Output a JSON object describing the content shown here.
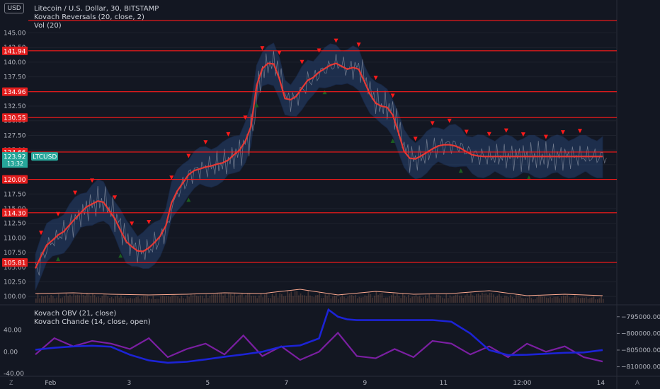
{
  "header": {
    "currency_badge": "USD",
    "title": "Litecoin / U.S. Dollar, 30, BITSTAMP",
    "indicators": [
      "Kovach Reversals (20, close, 2)",
      "Vol (20)"
    ]
  },
  "lower_pane": {
    "indicators": [
      "Kovach OBV (21, close)",
      "Kovach Chande (14, close, open)"
    ]
  },
  "footer": {
    "left_button": "Z",
    "right_button": "A"
  },
  "colors": {
    "background": "#131722",
    "level_line": "#ff1a1a",
    "ma_line": "#e53935",
    "band_fill": "#2a4a7f",
    "marker_down": "#ff1a1a",
    "marker_up": "#1b5e20",
    "volume": "#6d4c41",
    "vol_ma": "#ffab91",
    "obv": "#1c23d6",
    "chande": "#7b1fa2",
    "last_price_badge": "#26a69a"
  },
  "chart_data": [
    {
      "type": "line",
      "title": "Litecoin / U.S. Dollar, 30, BITSTAMP",
      "y_axis_side": "left",
      "ylim": [
        98.7,
        148.2
      ],
      "y_ticks": [
        100.0,
        102.5,
        105.0,
        107.5,
        110.0,
        112.5,
        115.0,
        117.5,
        120.0,
        122.5,
        125.0,
        127.5,
        130.0,
        132.5,
        135.0,
        137.5,
        140.0,
        142.5,
        145.0
      ],
      "y_tick_labels": [
        "100.00",
        "102.50",
        "105.00",
        "107.50",
        "110.00",
        "112.50",
        "115.00",
        "117.50",
        "120.00",
        "122.50",
        "125.00",
        "127.50",
        "130.00",
        "132.50",
        "135.00",
        "137.50",
        "140.00",
        "142.50",
        "145.00"
      ],
      "x_tick_labels": [
        "Feb",
        "3",
        "5",
        "7",
        "9",
        "11",
        "12:00",
        "14"
      ],
      "horizontal_levels": [
        147.1,
        141.94,
        134.96,
        130.55,
        124.66,
        120.0,
        114.3,
        105.81
      ],
      "level_labels": [
        "141.94",
        "134.96",
        "130.55",
        "124.66",
        "120.00",
        "114.30",
        "105.81"
      ],
      "last_price": {
        "symbol": "LTCUSD",
        "value": "123.92",
        "countdown": "13:32"
      },
      "series": [
        {
          "name": "Kovach Reversals (20, close, 2)",
          "x": [
            0,
            3,
            6,
            9,
            12,
            15,
            18,
            21,
            24,
            27,
            30,
            33,
            36,
            39,
            42,
            45,
            48,
            51,
            54,
            57,
            60,
            63,
            66,
            69,
            72,
            75,
            78,
            81,
            84,
            87,
            90,
            93,
            96,
            99,
            102,
            105,
            108,
            111,
            114,
            117,
            120,
            123,
            126,
            129,
            132,
            135,
            138,
            141,
            144,
            147,
            150,
            153,
            156,
            159,
            162,
            165,
            168,
            171,
            174,
            177,
            180,
            183,
            186,
            189,
            192,
            195,
            198,
            201,
            204,
            207,
            210,
            213,
            216,
            219,
            222,
            225,
            228,
            231,
            234,
            237,
            240,
            243,
            246,
            249,
            252,
            255,
            258,
            261,
            264,
            267,
            270,
            273,
            276,
            279,
            282,
            285,
            288,
            291,
            294,
            297,
            300
          ],
          "values": [
            104.8,
            106.9,
            108.8,
            109.6,
            110.5,
            111.1,
            112.2,
            113.3,
            114.3,
            115.3,
            115.8,
            116.3,
            116.1,
            114.7,
            113.3,
            111.3,
            109.4,
            108.5,
            107.8,
            107.7,
            108.3,
            109.2,
            110.3,
            112.1,
            116.0,
            118.0,
            119.4,
            120.8,
            121.5,
            121.8,
            122.1,
            122.3,
            122.6,
            122.8,
            123.3,
            124.2,
            125.0,
            126.5,
            129.0,
            136.0,
            138.9,
            139.8,
            139.7,
            137.2,
            133.8,
            133.6,
            134.2,
            135.6,
            136.9,
            137.4,
            138.3,
            138.9,
            139.5,
            139.8,
            139.3,
            138.8,
            139.1,
            138.8,
            136.7,
            134.5,
            133.0,
            132.5,
            132.3,
            131.0,
            128.0,
            124.8,
            123.6,
            123.5,
            124.0,
            124.6,
            125.2,
            125.7,
            125.9,
            125.9,
            125.7,
            125.3,
            124.7,
            124.2,
            124.0,
            123.9,
            123.9,
            123.9,
            123.9,
            123.9,
            123.9,
            123.9,
            123.9,
            123.9,
            123.9,
            123.9,
            123.9,
            123.9,
            123.9,
            123.9,
            123.9,
            123.9,
            123.9,
            123.9,
            123.9,
            123.9,
            123.9
          ]
        },
        {
          "name": "Vol (20)",
          "x": [
            0,
            20,
            40,
            60,
            80,
            100,
            120,
            140,
            160,
            180,
            200,
            220,
            240,
            260,
            280,
            300
          ],
          "values": [
            13,
            14,
            12,
            11,
            12,
            14,
            13,
            19,
            11,
            16,
            12,
            13,
            17,
            10,
            12,
            10
          ]
        }
      ],
      "reversal_markers_down_count": 30,
      "reversal_markers_up_count": 8
    },
    {
      "type": "line",
      "title": "Kovach OBV (21, close)",
      "y_axis_side": "left",
      "ylim": [
        -40.0,
        80.0
      ],
      "y_ticks": [
        -40.0,
        0.0,
        40.0
      ],
      "y_tick_labels": [
        "-40.00",
        "0.00",
        "40.00"
      ],
      "right_axis_ticks": [
        -795000.0,
        -800000.0,
        -805000.0,
        -810000.0
      ],
      "right_axis_labels": [
        "−795000.00",
        "−800000.00",
        "−805000.00",
        "−810000.00"
      ],
      "series": [
        {
          "name": "Kovach OBV (21, close)",
          "x": [
            0,
            10,
            20,
            30,
            40,
            50,
            60,
            70,
            80,
            90,
            100,
            110,
            120,
            130,
            140,
            150,
            155,
            160,
            165,
            170,
            180,
            190,
            200,
            210,
            220,
            230,
            240,
            250,
            260,
            270,
            280,
            290,
            300
          ],
          "values": [
            -804900,
            -804300,
            -803900,
            -803700,
            -804000,
            -806400,
            -808100,
            -808800,
            -808500,
            -807800,
            -807000,
            -806300,
            -805500,
            -804000,
            -803600,
            -801500,
            -792900,
            -795000,
            -795800,
            -796000,
            -796000,
            -796000,
            -796000,
            -796000,
            -796500,
            -800000,
            -805000,
            -806500,
            -806400,
            -806100,
            -805800,
            -805700,
            -805000
          ]
        },
        {
          "name": "Kovach Chande (14, close, open)",
          "x": [
            0,
            10,
            20,
            30,
            40,
            50,
            60,
            70,
            80,
            90,
            100,
            110,
            120,
            130,
            140,
            150,
            160,
            170,
            180,
            190,
            200,
            210,
            220,
            230,
            240,
            250,
            260,
            270,
            280,
            290,
            300
          ],
          "values": [
            -5,
            25,
            10,
            20,
            15,
            5,
            25,
            -10,
            5,
            15,
            -5,
            30,
            -8,
            10,
            -15,
            0,
            35,
            -8,
            -12,
            5,
            -10,
            20,
            15,
            -5,
            10,
            -10,
            15,
            0,
            10,
            -10,
            -18
          ]
        }
      ]
    }
  ]
}
